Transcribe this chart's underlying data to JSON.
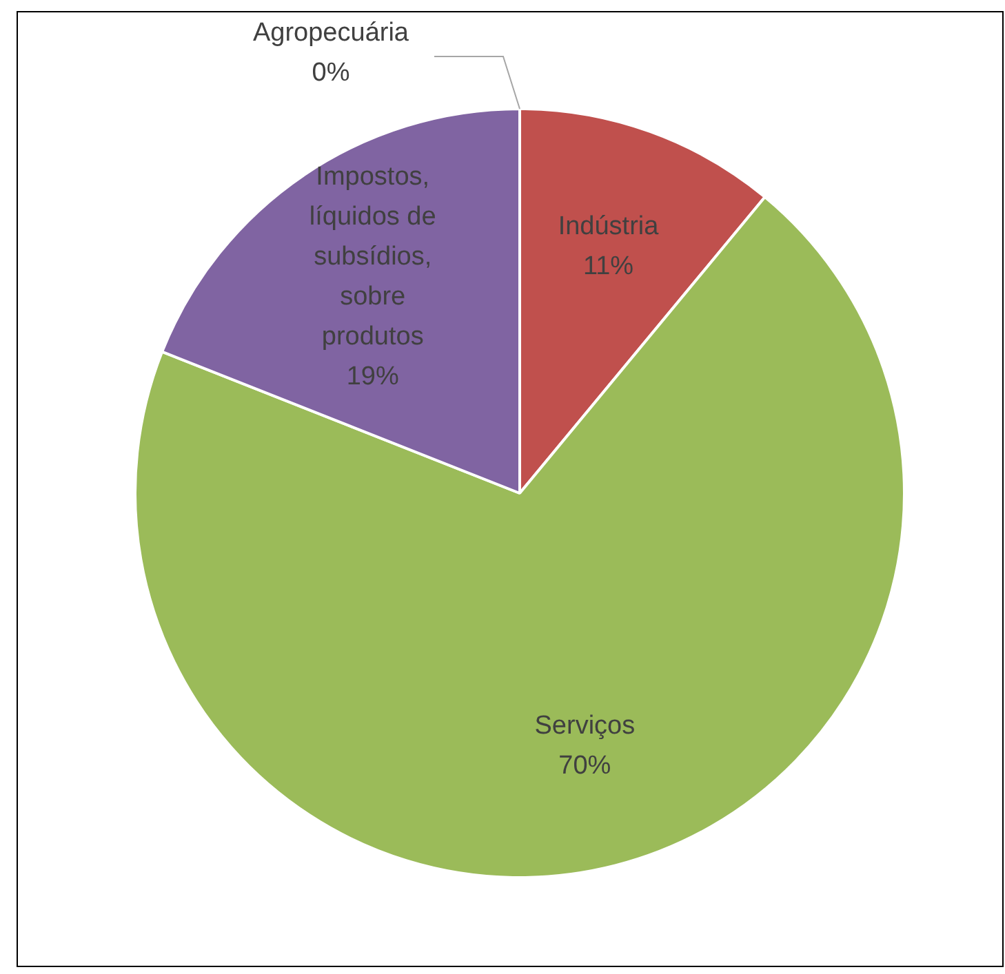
{
  "chart_data": {
    "type": "pie",
    "categories": [
      "Agropecuária",
      "Indústria",
      "Serviços",
      "Impostos, líquidos de subsídios, sobre produtos"
    ],
    "values": [
      0,
      11,
      70,
      19
    ],
    "colors": [
      "#4f81bd",
      "#c0504d",
      "#9bbb59",
      "#8064a2"
    ],
    "value_labels": [
      "0%",
      "11%",
      "70%",
      "19%"
    ],
    "legend": false
  }
}
